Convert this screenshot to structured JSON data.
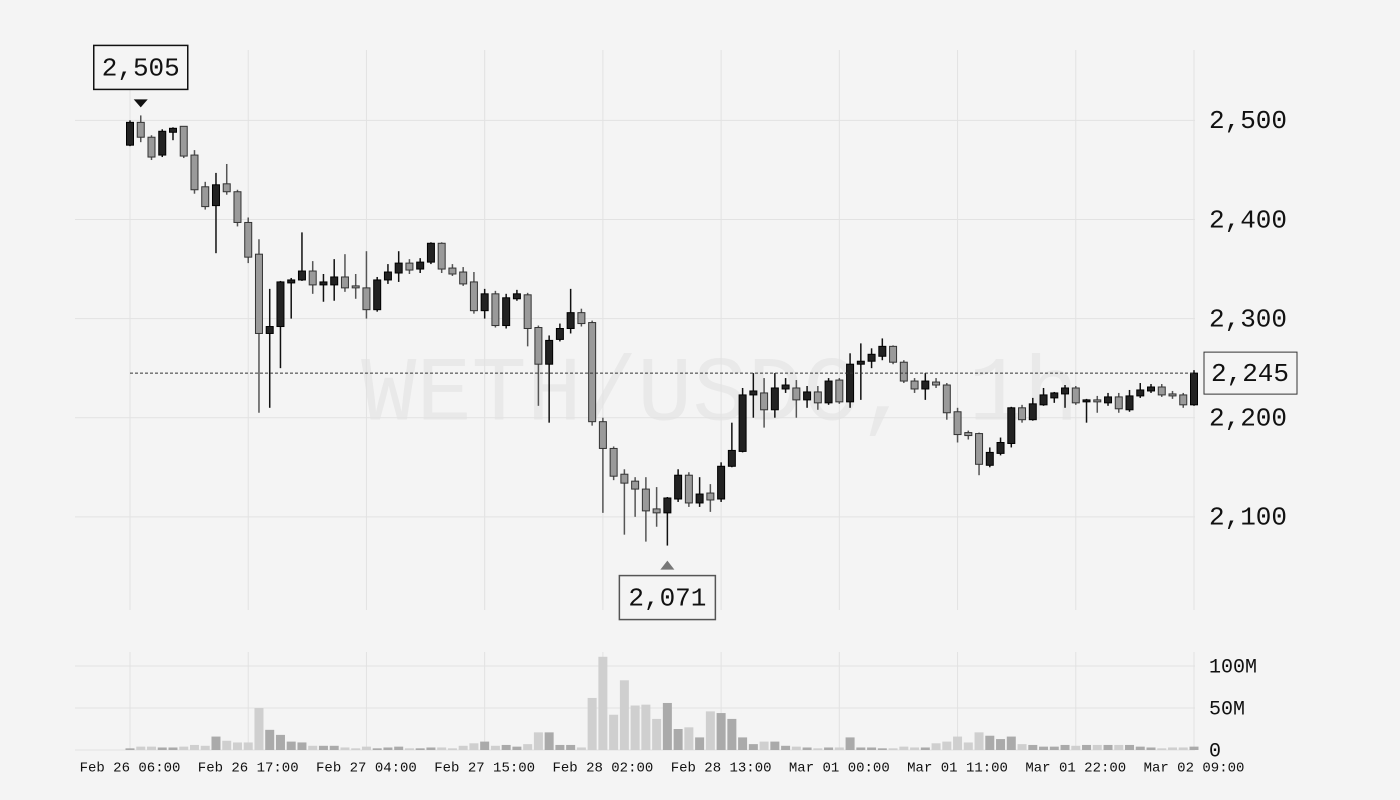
{
  "chart_data": {
    "type": "candlestick",
    "watermark": "WETH/USDC, 1h",
    "categories": [
      "Feb 26 06:00",
      null,
      null,
      null,
      null,
      null,
      null,
      null,
      null,
      null,
      null,
      "Feb 26 17:00",
      null,
      null,
      null,
      null,
      null,
      null,
      null,
      null,
      null,
      null,
      "Feb 27 04:00",
      null,
      null,
      null,
      null,
      null,
      null,
      null,
      null,
      null,
      null,
      "Feb 27 15:00",
      null,
      null,
      null,
      null,
      null,
      null,
      null,
      null,
      null,
      null,
      "Feb 28 02:00",
      null,
      null,
      null,
      null,
      null,
      null,
      null,
      null,
      null,
      null,
      "Feb 28 13:00",
      null,
      null,
      null,
      null,
      null,
      null,
      null,
      null,
      null,
      null,
      "Mar 01 00:00",
      null,
      null,
      null,
      null,
      null,
      null,
      null,
      null,
      null,
      null,
      "Mar 01 11:00",
      null,
      null,
      null,
      null,
      null,
      null,
      null,
      null,
      null,
      null,
      "Mar 01 22:00",
      null,
      null,
      null,
      null,
      null,
      null,
      null,
      null,
      null,
      null,
      "Mar 02 09:00"
    ],
    "open": [
      2475,
      2498,
      2483,
      2465,
      2488,
      2494,
      2465,
      2433,
      2414,
      2436,
      2428,
      2397,
      2365,
      2285,
      2292,
      2336,
      2339,
      2348,
      2334,
      2334,
      2342,
      2333,
      2331,
      2309,
      2339,
      2346,
      2356,
      2350,
      2357,
      2376,
      2351,
      2347,
      2337,
      2308,
      2325,
      2293,
      2320,
      2324,
      2291,
      2254,
      2279,
      2290,
      2306,
      2296,
      2196,
      2169,
      2143,
      2136,
      2128,
      2108,
      2104,
      2118,
      2142,
      2114,
      2124,
      2118,
      2151,
      2166,
      2223,
      2225,
      2208,
      2229,
      2230,
      2218,
      2226,
      2215,
      2238,
      2216,
      2254,
      2257,
      2262,
      2272,
      2256,
      2237,
      2229,
      2236,
      2233,
      2206,
      2185,
      2184,
      2152,
      2164,
      2174,
      2210,
      2198,
      2213,
      2220,
      2224,
      2230,
      2216,
      2218,
      2215,
      2221,
      2208,
      2222,
      2227,
      2231,
      2224,
      2223,
      2213
    ],
    "high": [
      2500,
      2505,
      2485,
      2491,
      2493,
      2494,
      2470,
      2438,
      2447,
      2456,
      2430,
      2402,
      2380,
      2330,
      2338,
      2341,
      2387,
      2358,
      2345,
      2360,
      2365,
      2345,
      2368,
      2342,
      2355,
      2368,
      2360,
      2361,
      2377,
      2377,
      2355,
      2352,
      2347,
      2330,
      2328,
      2325,
      2329,
      2326,
      2293,
      2283,
      2295,
      2330,
      2310,
      2298,
      2200,
      2171,
      2148,
      2140,
      2140,
      2130,
      2120,
      2148,
      2145,
      2140,
      2133,
      2155,
      2195,
      2230,
      2245,
      2240,
      2245,
      2240,
      2238,
      2232,
      2232,
      2240,
      2240,
      2265,
      2275,
      2270,
      2280,
      2273,
      2258,
      2240,
      2245,
      2240,
      2235,
      2210,
      2187,
      2185,
      2170,
      2180,
      2211,
      2213,
      2220,
      2230,
      2226,
      2233,
      2232,
      2219,
      2222,
      2225,
      2225,
      2228,
      2235,
      2234,
      2234,
      2227,
      2225,
      2248
    ],
    "low": [
      2474,
      2478,
      2460,
      2463,
      2480,
      2462,
      2426,
      2410,
      2366,
      2425,
      2393,
      2356,
      2205,
      2210,
      2250,
      2300,
      2338,
      2325,
      2317,
      2318,
      2327,
      2320,
      2300,
      2307,
      2335,
      2337,
      2345,
      2346,
      2355,
      2346,
      2343,
      2333,
      2305,
      2300,
      2291,
      2290,
      2318,
      2272,
      2212,
      2195,
      2277,
      2285,
      2292,
      2192,
      2104,
      2137,
      2082,
      2100,
      2075,
      2090,
      2071,
      2115,
      2110,
      2110,
      2105,
      2115,
      2150,
      2165,
      2200,
      2190,
      2200,
      2225,
      2200,
      2210,
      2208,
      2213,
      2214,
      2210,
      2218,
      2250,
      2258,
      2254,
      2235,
      2225,
      2218,
      2230,
      2198,
      2175,
      2178,
      2142,
      2150,
      2162,
      2170,
      2195,
      2197,
      2212,
      2215,
      2210,
      2213,
      2195,
      2205,
      2212,
      2205,
      2206,
      2220,
      2225,
      2221,
      2219,
      2210,
      2212
    ],
    "close": [
      2498,
      2483,
      2463,
      2489,
      2492,
      2464,
      2430,
      2413,
      2435,
      2428,
      2397,
      2362,
      2285,
      2292,
      2337,
      2339,
      2348,
      2334,
      2337,
      2342,
      2331,
      2331,
      2309,
      2339,
      2347,
      2356,
      2349,
      2357,
      2376,
      2350,
      2345,
      2335,
      2308,
      2325,
      2293,
      2321,
      2325,
      2290,
      2254,
      2278,
      2290,
      2306,
      2295,
      2196,
      2169,
      2141,
      2134,
      2128,
      2106,
      2104,
      2119,
      2142,
      2114,
      2123,
      2117,
      2151,
      2167,
      2223,
      2227,
      2208,
      2230,
      2233,
      2218,
      2226,
      2215,
      2237,
      2216,
      2254,
      2257,
      2264,
      2272,
      2256,
      2237,
      2229,
      2237,
      2233,
      2205,
      2183,
      2182,
      2153,
      2165,
      2175,
      2210,
      2198,
      2214,
      2223,
      2225,
      2230,
      2215,
      2218,
      2216,
      2221,
      2209,
      2222,
      2228,
      2231,
      2223,
      2222,
      2213,
      2245
    ],
    "volume": [
      2000000.0,
      4000000.0,
      4000000.0,
      3000000.0,
      3000000.0,
      4000000.0,
      6000000.0,
      5000000.0,
      16000000.0,
      11000000.0,
      9000000.0,
      9000000.0,
      50000000.0,
      24000000.0,
      18000000.0,
      10000000.0,
      9000000.0,
      5000000.0,
      5000000.0,
      5000000.0,
      3000000.0,
      2000000.0,
      4000000.0,
      2000000.0,
      3000000.0,
      4000000.0,
      2000000.0,
      2000000.0,
      3000000.0,
      3000000.0,
      2000000.0,
      5000000.0,
      8000000.0,
      10000000.0,
      5000000.0,
      6000000.0,
      4000000.0,
      7000000.0,
      21000000.0,
      21000000.0,
      6000000.0,
      6000000.0,
      3000000.0,
      62000000.0,
      111000000.0,
      42000000.0,
      83000000.0,
      53000000.0,
      54000000.0,
      37000000.0,
      56000000.0,
      25000000.0,
      27000000.0,
      15000000.0,
      46000000.0,
      44000000.0,
      37000000.0,
      15000000.0,
      7000000.0,
      10000000.0,
      10000000.0,
      5000000.0,
      4000000.0,
      3000000.0,
      2000000.0,
      3000000.0,
      3000000.0,
      15000000.0,
      3000000.0,
      3000000.0,
      2000000.0,
      2000000.0,
      4000000.0,
      3000000.0,
      3000000.0,
      8000000.0,
      10000000.0,
      16000000.0,
      9000000.0,
      21000000.0,
      17000000.0,
      13000000.0,
      16000000.0,
      7000000.0,
      6000000.0,
      4000000.0,
      4000000.0,
      6000000.0,
      5000000.0,
      6000000.0,
      6000000.0,
      6000000.0,
      6000000.0,
      6000000.0,
      4000000.0,
      3000000.0,
      2000000.0,
      3000000.0,
      3000000.0,
      4000000.0
    ],
    "up_color": "#222222",
    "down_color": "#9a9a9a",
    "volume_up_color": "#aaaaaa",
    "volume_down_color": "#cfcfcf",
    "ylim": [
      2006,
      2571
    ],
    "yticks": [
      {
        "value": 2100,
        "label": "2,100"
      },
      {
        "value": 2200,
        "label": "2,200"
      },
      {
        "value": 2300,
        "label": "2,300"
      },
      {
        "value": 2400,
        "label": "2,400"
      },
      {
        "value": 2500,
        "label": "2,500"
      }
    ],
    "volume_ylim": [
      0,
      116700000
    ],
    "volume_ticks": [
      {
        "value": 0,
        "label": "0"
      },
      {
        "value": 50000000,
        "label": "50M"
      },
      {
        "value": 100000000,
        "label": "100M"
      }
    ],
    "high_marker": {
      "value": 2505,
      "label": "2,505"
    },
    "low_marker": {
      "value": 2071,
      "label": "2,071"
    },
    "last_price": {
      "value": 2245,
      "label": "2,245"
    },
    "grid": true
  }
}
